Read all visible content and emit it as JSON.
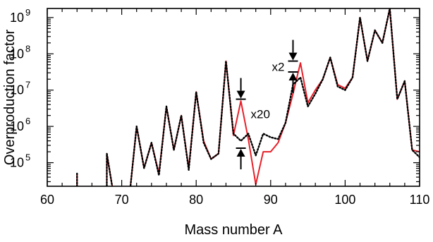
{
  "chart_data": {
    "type": "line",
    "xlabel": "Mass number A",
    "ylabel": "Overproduction factor",
    "xlim": [
      60,
      110
    ],
    "ylim_log10": [
      4.35,
      9.25
    ],
    "y_scale": "log",
    "grid": false,
    "x_ticks": [
      60,
      70,
      80,
      90,
      100,
      110
    ],
    "x_tick_labels": [
      "60",
      "70",
      "80",
      "90",
      "100",
      "110"
    ],
    "y_ticks": [
      {
        "base": "10",
        "exp": "5",
        "log10": 5
      },
      {
        "base": "10",
        "exp": "6",
        "log10": 6
      },
      {
        "base": "10",
        "exp": "7",
        "log10": 7
      },
      {
        "base": "10",
        "exp": "8",
        "log10": 8
      },
      {
        "base": "10",
        "exp": "9",
        "log10": 9
      }
    ],
    "series": [
      {
        "style": "solid",
        "color": "#e8202a",
        "points": [
          [
            64,
            4.7
          ],
          [
            64,
            4.0
          ],
          [
            68,
            4.0
          ],
          [
            68,
            5.25
          ],
          [
            69,
            4.0
          ],
          [
            71,
            4.0
          ],
          [
            72,
            6.0
          ],
          [
            73,
            4.85
          ],
          [
            74,
            5.55
          ],
          [
            75,
            4.7
          ],
          [
            76,
            6.55
          ],
          [
            77,
            5.35
          ],
          [
            78,
            6.3
          ],
          [
            79,
            4.85
          ],
          [
            80,
            6.95
          ],
          [
            81,
            5.6
          ],
          [
            82,
            5.1
          ],
          [
            83,
            5.25
          ],
          [
            84,
            7.8
          ],
          [
            85,
            5.75
          ],
          [
            86,
            6.7
          ],
          [
            87,
            5.65
          ],
          [
            88,
            4.4
          ],
          [
            89,
            5.3
          ],
          [
            90,
            5.3
          ],
          [
            91,
            5.55
          ],
          [
            92,
            6.1
          ],
          [
            93,
            6.9
          ],
          [
            94,
            7.75
          ],
          [
            95,
            6.65
          ],
          [
            96,
            7.0
          ],
          [
            97,
            7.3
          ],
          [
            98,
            7.9
          ],
          [
            99,
            7.15
          ],
          [
            100,
            7.05
          ],
          [
            101,
            7.35
          ],
          [
            102,
            9.0
          ],
          [
            103,
            7.8
          ],
          [
            104,
            8.65
          ],
          [
            105,
            8.3
          ],
          [
            106,
            9.25
          ],
          [
            107,
            6.75
          ],
          [
            108,
            7.25
          ],
          [
            109,
            5.35
          ],
          [
            110,
            5.3
          ]
        ]
      },
      {
        "style": "dotted",
        "color": "#000000",
        "points": [
          [
            64,
            4.7
          ],
          [
            64,
            4.0
          ],
          [
            68,
            4.0
          ],
          [
            68,
            5.25
          ],
          [
            69,
            4.0
          ],
          [
            71,
            4.0
          ],
          [
            72,
            6.0
          ],
          [
            73,
            4.85
          ],
          [
            74,
            5.55
          ],
          [
            75,
            4.65
          ],
          [
            76,
            6.55
          ],
          [
            77,
            5.35
          ],
          [
            78,
            6.3
          ],
          [
            79,
            4.8
          ],
          [
            80,
            6.95
          ],
          [
            81,
            5.55
          ],
          [
            82,
            5.1
          ],
          [
            83,
            5.25
          ],
          [
            84,
            7.8
          ],
          [
            85,
            5.8
          ],
          [
            86,
            5.6
          ],
          [
            87,
            5.8
          ],
          [
            88,
            5.2
          ],
          [
            89,
            5.8
          ],
          [
            90,
            5.7
          ],
          [
            91,
            5.65
          ],
          [
            92,
            6.1
          ],
          [
            93,
            7.15
          ],
          [
            94,
            7.35
          ],
          [
            95,
            6.55
          ],
          [
            96,
            6.9
          ],
          [
            97,
            7.3
          ],
          [
            98,
            7.9
          ],
          [
            99,
            7.1
          ],
          [
            100,
            7.0
          ],
          [
            101,
            7.35
          ],
          [
            102,
            9.0
          ],
          [
            103,
            7.8
          ],
          [
            104,
            8.65
          ],
          [
            105,
            8.3
          ],
          [
            106,
            9.25
          ],
          [
            107,
            6.75
          ],
          [
            108,
            7.25
          ],
          [
            109,
            5.35
          ],
          [
            110,
            5.15
          ]
        ]
      }
    ],
    "annotations": [
      {
        "text": "x20",
        "x": 86,
        "top_log10": 6.75,
        "bottom_log10": 5.4
      },
      {
        "text": "x2",
        "x": 93,
        "top_log10": 7.8,
        "bottom_log10": 7.5
      }
    ]
  }
}
